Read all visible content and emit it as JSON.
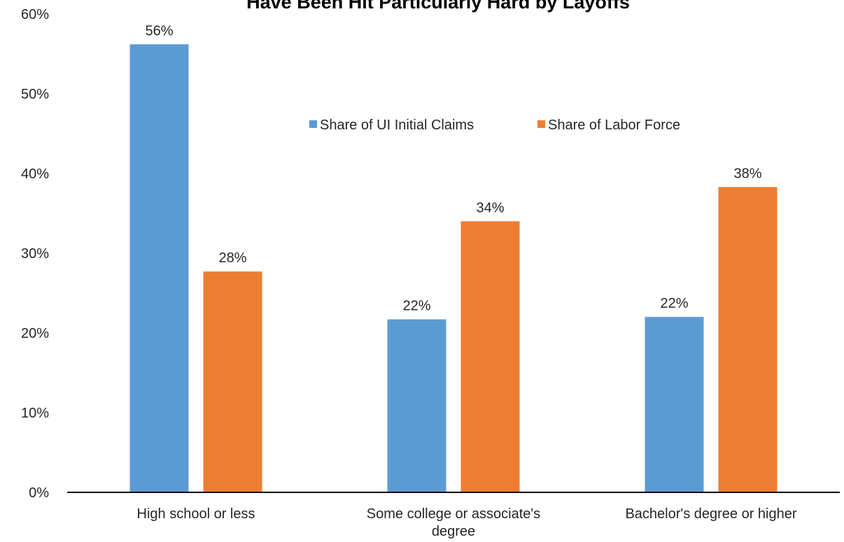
{
  "chart_data": {
    "type": "bar",
    "title": "Have Been Hit Particularly Hard by Layoffs",
    "categories": [
      [
        "High school or less"
      ],
      [
        "Some college or associate's",
        "degree"
      ],
      [
        "Bachelor's degree or higher"
      ]
    ],
    "series": [
      {
        "name": "Share of UI Initial Claims",
        "color": "#5B9BD5",
        "values": [
          56.2,
          21.7,
          22.0
        ],
        "labels": [
          "56%",
          "22%",
          "22%"
        ]
      },
      {
        "name": "Share of Labor Force",
        "color": "#ED7D31",
        "values": [
          27.7,
          34.0,
          38.3
        ],
        "labels": [
          "28%",
          "34%",
          "38%"
        ]
      }
    ],
    "ylim": [
      0,
      60
    ],
    "yticks": [
      {
        "value": 0,
        "label": "0%"
      },
      {
        "value": 10,
        "label": "10%"
      },
      {
        "value": 20,
        "label": "20%"
      },
      {
        "value": 30,
        "label": "30%"
      },
      {
        "value": 40,
        "label": "40%"
      },
      {
        "value": 50,
        "label": "50%"
      },
      {
        "value": 60,
        "label": "60%"
      }
    ],
    "gridlines": false,
    "legend_position": "top-center"
  }
}
